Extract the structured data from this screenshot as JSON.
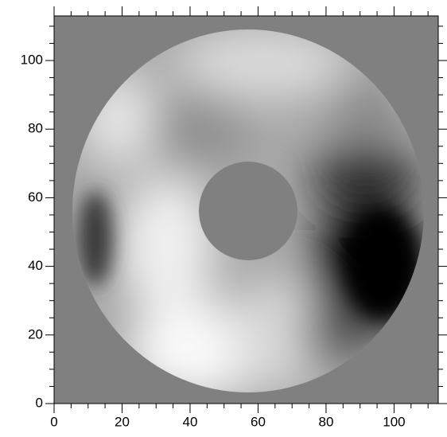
{
  "chart_data": {
    "type": "image",
    "xlim": [
      0,
      113
    ],
    "ylim": [
      0,
      113
    ],
    "xticks": [
      0,
      20,
      40,
      60,
      80,
      100
    ],
    "yticks": [
      0,
      20,
      40,
      60,
      80,
      100
    ],
    "xminorticks": [
      5,
      10,
      15,
      25,
      30,
      35,
      45,
      50,
      55,
      65,
      70,
      75,
      85,
      90,
      95,
      105,
      110
    ],
    "yminorticks": [
      5,
      10,
      15,
      25,
      30,
      35,
      45,
      50,
      55,
      65,
      70,
      75,
      85,
      90,
      95,
      105,
      110
    ]
  }
}
